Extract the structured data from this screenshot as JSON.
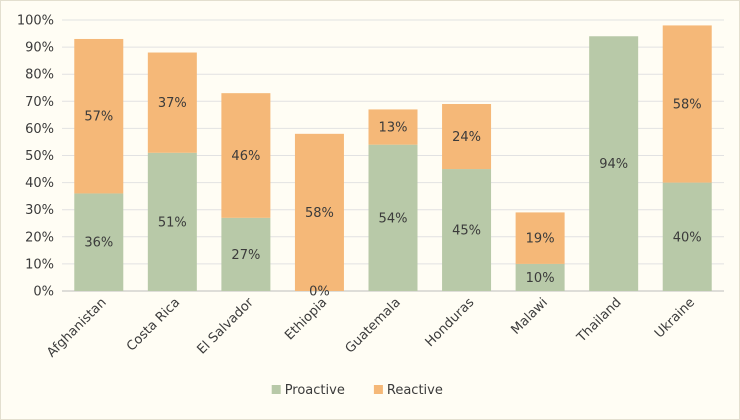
{
  "chart_data": {
    "type": "bar",
    "stacked": true,
    "categories": [
      "Afghanistan",
      "Costa Rica",
      "El Salvador",
      "Ethiopia",
      "Guatemala",
      "Honduras",
      "Malawi",
      "Thailand",
      "Ukraine"
    ],
    "series": [
      {
        "name": "Proactive",
        "color": "#b8c9a8",
        "values": [
          36,
          51,
          27,
          0,
          54,
          45,
          10,
          94,
          40
        ],
        "labels": [
          "36%",
          "51%",
          "27%",
          "0%",
          "54%",
          "45%",
          "10%",
          "94%",
          "40%"
        ]
      },
      {
        "name": "Reactive",
        "color": "#f5b878",
        "values": [
          57,
          37,
          46,
          58,
          13,
          24,
          19,
          0,
          58
        ],
        "labels": [
          "57%",
          "37%",
          "46%",
          "58%",
          "13%",
          "24%",
          "19%",
          "",
          "58%"
        ]
      }
    ],
    "ylim": [
      0,
      100
    ],
    "yticks": [
      "0%",
      "10%",
      "20%",
      "30%",
      "40%",
      "50%",
      "60%",
      "70%",
      "80%",
      "90%",
      "100%"
    ],
    "grid": true,
    "legend": "bottom-center"
  }
}
